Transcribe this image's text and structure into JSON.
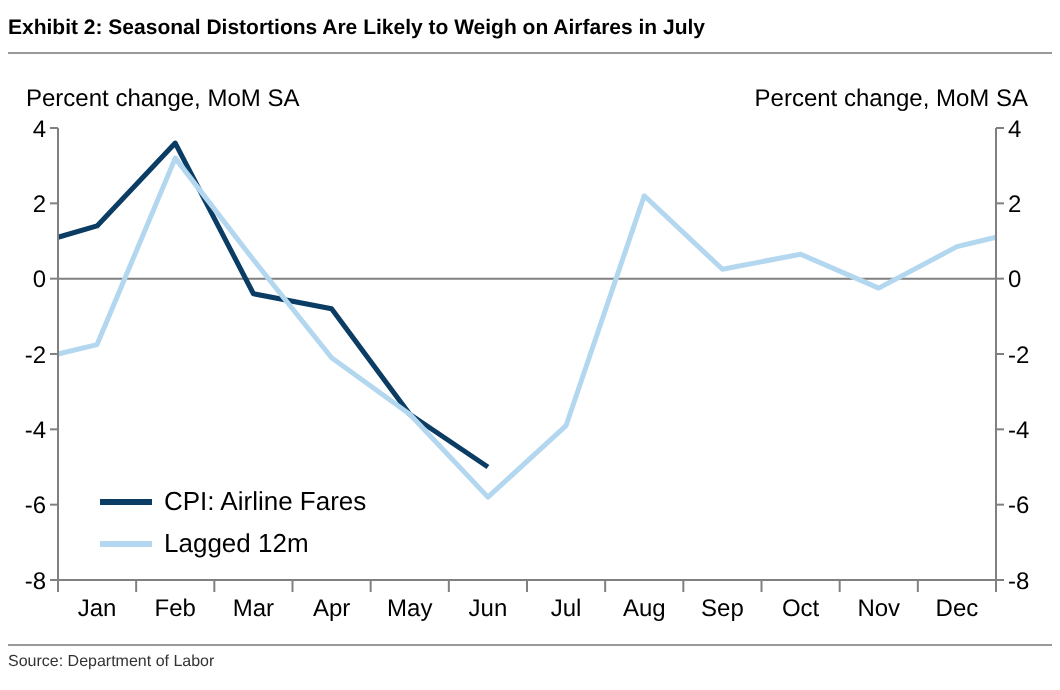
{
  "chart_data": {
    "type": "line",
    "title": "Exhibit 2: Seasonal Distortions Are Likely to Weigh on Airfares in July",
    "ylabel": "Percent change, MoM SA",
    "y2label": "Percent change, MoM SA",
    "annotations": [
      "Source: Department of Labor"
    ],
    "categories": [
      null,
      "Jan",
      null,
      "Feb",
      null,
      "Mar",
      null,
      "Apr",
      null,
      "May",
      null,
      "Jun",
      null,
      "Jul",
      null,
      "Aug",
      null,
      "Sep",
      null,
      "Oct",
      null,
      "Nov",
      null,
      "Dec",
      null
    ],
    "ylim": [
      -8,
      4
    ],
    "yticks": [
      -8,
      -6,
      -4,
      -2,
      0,
      2,
      4
    ],
    "y2lim": [
      -8,
      4
    ],
    "y2ticks": [
      -8,
      -6,
      -4,
      -2,
      0,
      2,
      4
    ],
    "ref_lines": [
      {
        "axis": "y",
        "value": 0,
        "color": "#808080"
      }
    ],
    "legend": "bottom left",
    "marker": "none",
    "line_style": "solid",
    "series": [
      {
        "name": "CPI: Airline Fares",
        "color": "#0b3c64",
        "values": [
          1.1,
          1.4,
          null,
          3.6,
          null,
          -0.4,
          null,
          -0.8,
          null,
          -3.6,
          null,
          -5.0,
          null,
          null,
          null,
          null,
          null,
          null,
          null,
          null,
          null,
          null,
          null,
          null,
          null
        ]
      },
      {
        "name": "Lagged 12m",
        "color": "#b4d7f0",
        "values": [
          -2.0,
          -1.75,
          null,
          3.2,
          null,
          0.5,
          null,
          -2.1,
          null,
          -3.6,
          null,
          -5.8,
          null,
          -3.9,
          null,
          2.2,
          null,
          0.25,
          null,
          0.65,
          null,
          -0.25,
          null,
          0.85,
          1.1
        ]
      }
    ]
  }
}
